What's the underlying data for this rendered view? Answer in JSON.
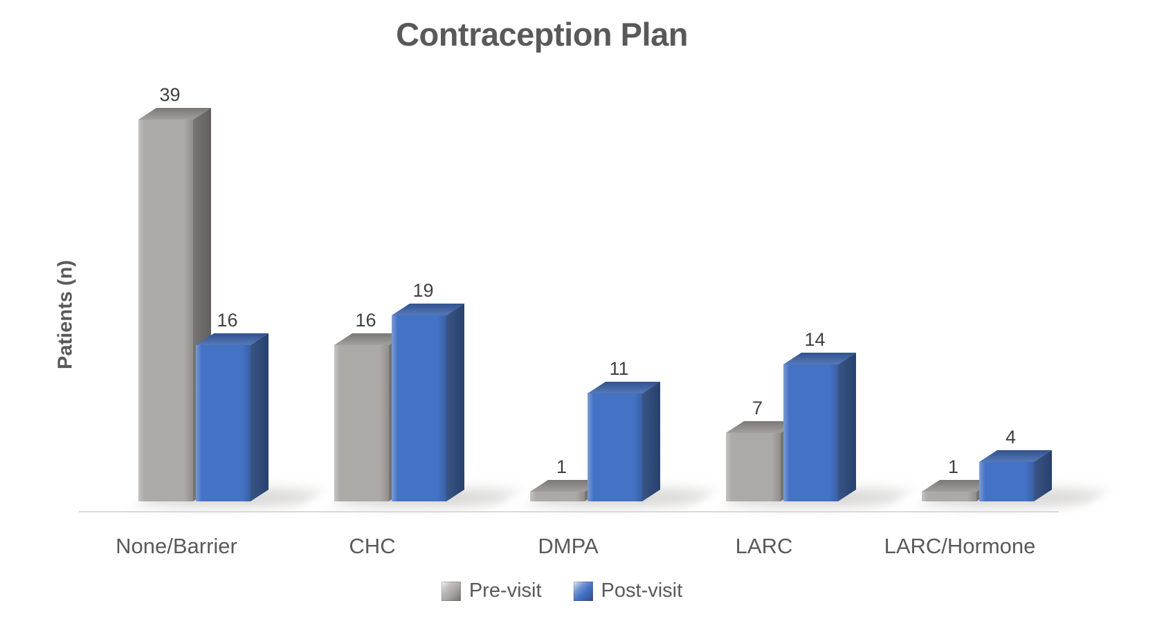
{
  "chart_data": {
    "type": "bar",
    "style": "3d-clustered-column",
    "title": "Contraception Plan",
    "xlabel": "",
    "ylabel": "Patients (n)",
    "categories": [
      "None/Barrier",
      "CHC",
      "DMPA",
      "LARC",
      "LARC/Hormone"
    ],
    "series": [
      {
        "name": "Pre-visit",
        "values": [
          39,
          16,
          1,
          7,
          1
        ],
        "colors": {
          "front": "#ACA9A7",
          "side": "#6F6D6C",
          "top": "#93908E"
        }
      },
      {
        "name": "Post-visit",
        "values": [
          16,
          19,
          11,
          14,
          4
        ],
        "colors": {
          "front": "#4472C4",
          "side": "#2C4A7C",
          "top": "#3A63AC"
        }
      }
    ],
    "data_labels": true,
    "legend_position": "bottom",
    "grid": false,
    "y_axis_tick_labels_visible": false,
    "ylim": [
      0,
      40
    ]
  },
  "text_colors": {
    "title": "#595959",
    "axis_labels": "#595959",
    "data_labels": "#3F3F3F",
    "legend": "#595959"
  },
  "axis_line_color": "#D9D9D9",
  "background_color": "#FFFFFF"
}
